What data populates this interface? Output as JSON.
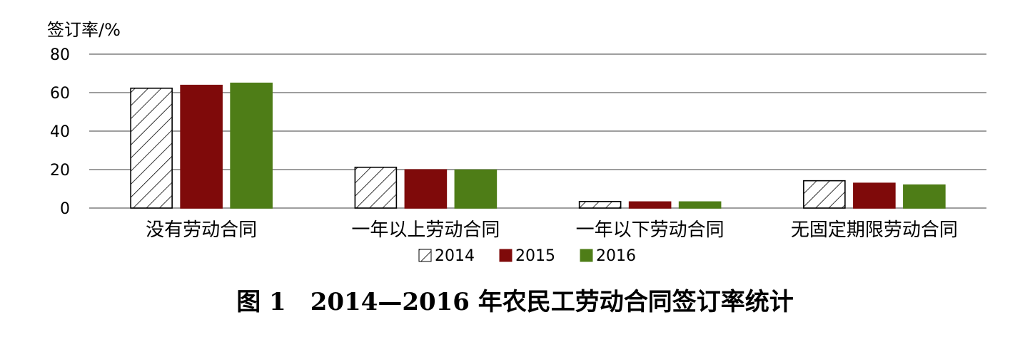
{
  "chart_data": {
    "type": "bar",
    "ylabel": "签订率/%",
    "ylim": [
      0,
      80
    ],
    "yticks": [
      0,
      20,
      40,
      60,
      80
    ],
    "grid": true,
    "legend_position": "bottom",
    "categories": [
      "没有劳动合同",
      "一年以上劳动合同",
      "一年以下劳动合同",
      "无固定期限劳动合同"
    ],
    "series": [
      {
        "name": "2014",
        "values": [
          62.3,
          21.2,
          3.4,
          14.2
        ],
        "color": "#ffffff",
        "pattern": "hatch"
      },
      {
        "name": "2015",
        "values": [
          63.8,
          19.9,
          3.2,
          12.9
        ],
        "color": "#7f0a0a"
      },
      {
        "name": "2016",
        "values": [
          64.9,
          19.8,
          3.2,
          12.0
        ],
        "color": "#4e7d17"
      }
    ]
  },
  "caption": "图 1　2014—2016 年农民工劳动合同签订率统计"
}
